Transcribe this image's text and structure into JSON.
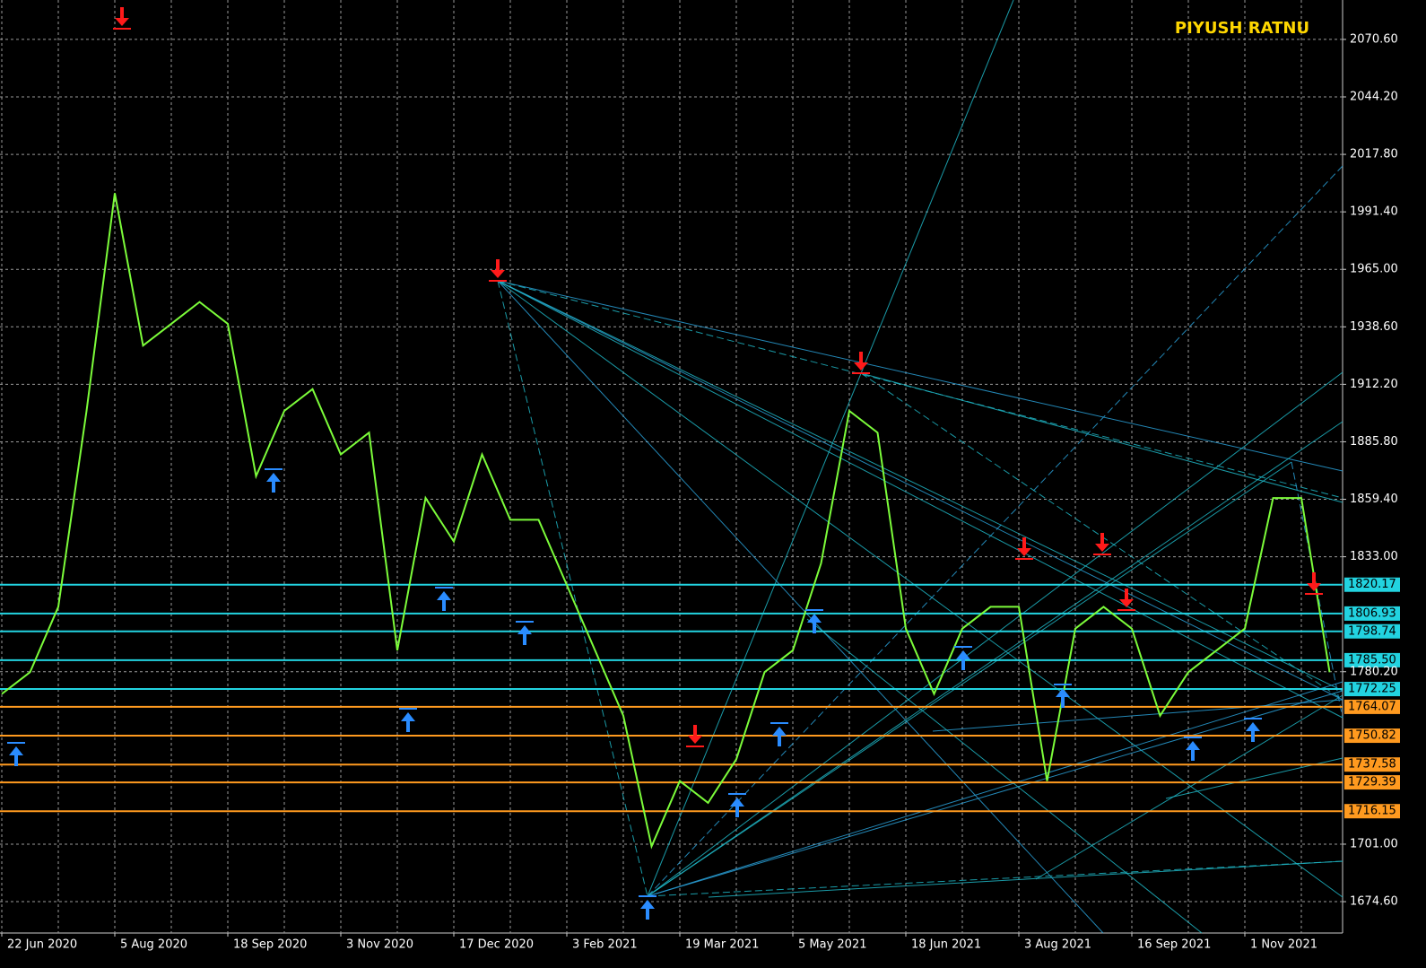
{
  "chart_data": {
    "type": "line",
    "title": "PIYUSH RATNU",
    "categories": [
      "22 Jun 2020",
      null,
      null,
      null,
      "5 Aug 2020",
      null,
      null,
      null,
      "18 Sep 2020",
      null,
      null,
      null,
      "3 Nov 2020",
      null,
      null,
      null,
      "17 Dec 2020",
      null,
      null,
      null,
      "3 Feb 2021",
      null,
      null,
      null,
      "19 Mar 2021",
      null,
      null,
      null,
      "5 May 2021",
      null,
      null,
      null,
      "18 Jun 2021",
      null,
      null,
      null,
      "3 Aug 2021",
      null,
      null,
      null,
      "16 Sep 2021",
      null,
      null,
      null,
      "1 Nov 2021",
      null,
      null,
      null
    ],
    "values": [
      1770,
      1780,
      1810,
      1900,
      2000,
      1930,
      1940,
      1950,
      1940,
      1870,
      1900,
      1910,
      1880,
      1890,
      1790,
      1860,
      1840,
      1880,
      1850,
      1850,
      1820,
      1790,
      1760,
      1700,
      1730,
      1720,
      1740,
      1780,
      1790,
      1830,
      1900,
      1890,
      1800,
      1770,
      1800,
      1810,
      1810,
      1730,
      1800,
      1810,
      1800,
      1760,
      1780,
      1790,
      1800,
      1860,
      1860,
      1780
    ],
    "color": "#7cfc3a",
    "ylim": [
      1660.2,
      2088.7
    ],
    "yticks": [
      {
        "value": 2070.6,
        "label": "2070.60"
      },
      {
        "value": 2044.2,
        "label": "2044.20"
      },
      {
        "value": 2017.8,
        "label": "2017.80"
      },
      {
        "value": 1991.4,
        "label": "1991.40"
      },
      {
        "value": 1965,
        "label": "1965.00"
      },
      {
        "value": 1938.6,
        "label": "1938.60"
      },
      {
        "value": 1912.2,
        "label": "1912.20"
      },
      {
        "value": 1885.8,
        "label": "1885.80"
      },
      {
        "value": 1859.4,
        "label": "1859.40"
      },
      {
        "value": 1833,
        "label": "1833.00"
      },
      {
        "value": 1780.2,
        "label": "1780.20"
      },
      {
        "value": 1701,
        "label": "1701.00"
      },
      {
        "value": 1674.6,
        "label": "1674.60"
      }
    ],
    "grid": true,
    "levels": [
      {
        "color": "#22d3e0",
        "values": [
          1820.17,
          1806.93,
          1798.74,
          1785.5,
          1772.25
        ],
        "value_labels": [
          "1820.17",
          "1806.93",
          "1798.74",
          "1785.50",
          "1772.25"
        ]
      },
      {
        "color": "#ff9a1f",
        "values": [
          1764.07,
          1750.82,
          1737.58,
          1729.39,
          1716.15
        ],
        "value_labels": [
          "1764.07",
          "1750.82",
          "1737.58",
          "1729.39",
          "1716.15"
        ]
      }
    ]
  }
}
